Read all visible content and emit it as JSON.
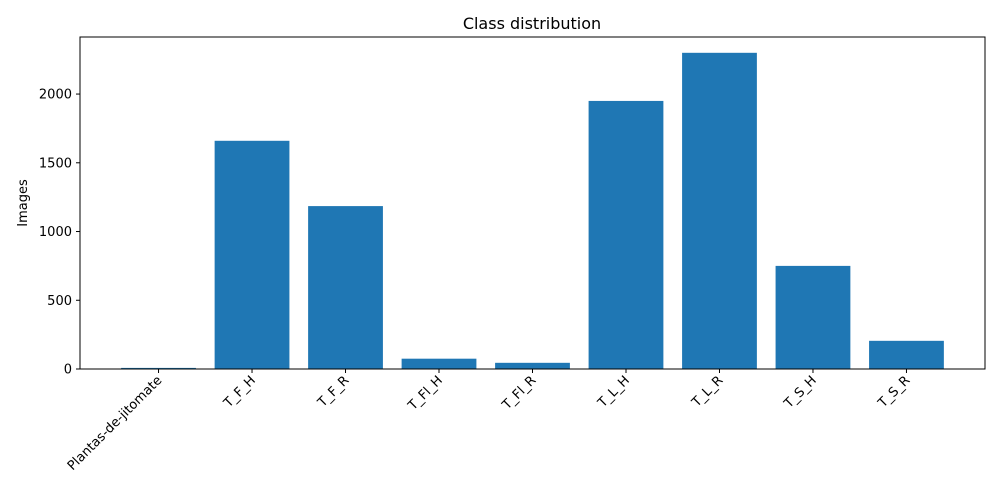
{
  "chart_data": {
    "type": "bar",
    "title": "Class distribution",
    "xlabel": "",
    "ylabel": "Images",
    "categories": [
      "Plantas-de-jitomate",
      "T_F_H",
      "T_F_R",
      "T_Fl_H",
      "T_Fl_R",
      "T_L_H",
      "T_L_R",
      "T_S_H",
      "T_S_R"
    ],
    "values": [
      8,
      1660,
      1185,
      75,
      45,
      1950,
      2300,
      750,
      205
    ],
    "ylim": [
      0,
      2415
    ],
    "yticks": [
      0,
      500,
      1000,
      1500,
      2000
    ],
    "bar_color": "#1f77b4",
    "grid": false,
    "legend": "none"
  }
}
